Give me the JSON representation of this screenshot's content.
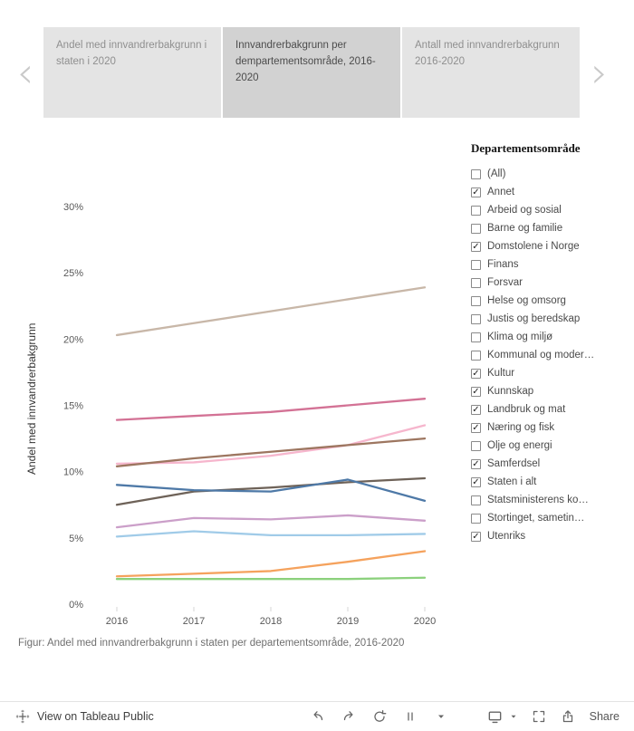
{
  "carousel": {
    "prev_icon": "‹",
    "next_icon": "›",
    "tabs": [
      {
        "label": "Andel med innvandrerbakgrunn i staten i 2020",
        "active": false
      },
      {
        "label": "Innvandrerbakgrunn per dempartementsområde, 2016-2020",
        "active": true
      },
      {
        "label": "Antall med innvandrerbakgrunn 2016-2020",
        "active": false
      }
    ]
  },
  "filter": {
    "title": "Departementsområde",
    "check_glyph": "✓",
    "items": [
      {
        "label": "(All)",
        "checked": false
      },
      {
        "label": "Annet",
        "checked": true
      },
      {
        "label": "Arbeid og sosial",
        "checked": false
      },
      {
        "label": "Barne og familie",
        "checked": false
      },
      {
        "label": "Domstolene i Norge",
        "checked": true
      },
      {
        "label": "Finans",
        "checked": false
      },
      {
        "label": "Forsvar",
        "checked": false
      },
      {
        "label": "Helse og omsorg",
        "checked": false
      },
      {
        "label": "Justis og beredskap",
        "checked": false
      },
      {
        "label": "Klima og miljø",
        "checked": false
      },
      {
        "label": "Kommunal og moder…",
        "checked": false
      },
      {
        "label": "Kultur",
        "checked": true
      },
      {
        "label": "Kunnskap",
        "checked": true
      },
      {
        "label": "Landbruk og mat",
        "checked": true
      },
      {
        "label": "Næring og fisk",
        "checked": true
      },
      {
        "label": "Olje og energi",
        "checked": false
      },
      {
        "label": "Samferdsel",
        "checked": true
      },
      {
        "label": "Staten i alt",
        "checked": true
      },
      {
        "label": "Statsministerens ko…",
        "checked": false
      },
      {
        "label": "Stortinget, sametin…",
        "checked": false
      },
      {
        "label": "Utenriks",
        "checked": true
      }
    ]
  },
  "chart_data": {
    "type": "line",
    "title": "",
    "ylabel": "Andel med innvandrerbakgrunn",
    "xlabel": "",
    "x": [
      "2016",
      "2017",
      "2018",
      "2019",
      "2020"
    ],
    "ylim": [
      0,
      30
    ],
    "ytick_values": [
      0,
      5,
      10,
      15,
      20,
      25,
      30
    ],
    "ytick_labels": [
      "0%",
      "5%",
      "10%",
      "15%",
      "20%",
      "25%",
      "30%"
    ],
    "grid": false,
    "legend_position": "none",
    "series": [
      {
        "name": "tan line",
        "color": "#c8b7a8",
        "values": [
          20.3,
          21.2,
          22.1,
          23.0,
          23.9
        ]
      },
      {
        "name": "dark pink line",
        "color": "#d37295",
        "values": [
          13.9,
          14.2,
          14.5,
          15.0,
          15.5
        ]
      },
      {
        "name": "light pink line",
        "color": "#f6b6cd",
        "values": [
          10.6,
          10.7,
          11.2,
          12.0,
          13.5
        ]
      },
      {
        "name": "brown line",
        "color": "#9d7660",
        "values": [
          10.4,
          11.0,
          11.5,
          12.0,
          12.5
        ]
      },
      {
        "name": "dark gray line",
        "color": "#6e6258",
        "values": [
          7.5,
          8.5,
          8.8,
          9.2,
          9.5
        ]
      },
      {
        "name": "blue line",
        "color": "#4e79a7",
        "values": [
          9.0,
          8.6,
          8.5,
          9.4,
          7.8
        ]
      },
      {
        "name": "purple line",
        "color": "#cb9fc9",
        "values": [
          5.8,
          6.5,
          6.4,
          6.7,
          6.3
        ]
      },
      {
        "name": "light blue line",
        "color": "#a0cbe8",
        "values": [
          5.1,
          5.5,
          5.2,
          5.2,
          5.3
        ]
      },
      {
        "name": "orange line",
        "color": "#f5a25d",
        "values": [
          2.1,
          2.3,
          2.5,
          3.2,
          4.0
        ]
      },
      {
        "name": "green line",
        "color": "#8cd17d",
        "values": [
          1.9,
          1.9,
          1.9,
          1.9,
          2.0
        ]
      }
    ]
  },
  "caption": "Figur: Andel med innvandrerbakgrunn i staten per departementsområde, 2016-2020",
  "toolbar": {
    "view_label": "View on Tableau Public",
    "share_label": "Share"
  }
}
